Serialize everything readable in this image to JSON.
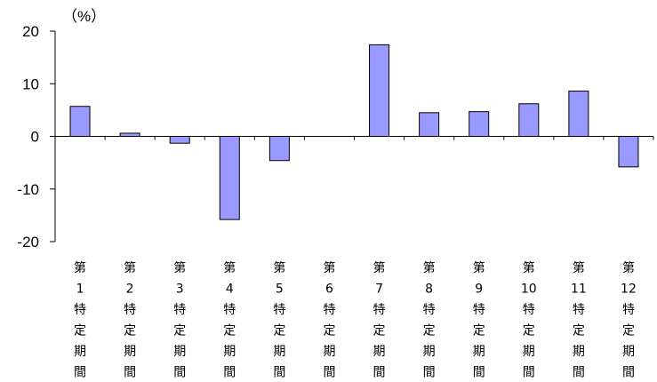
{
  "chart_data": {
    "type": "bar",
    "unit_label": "（%）",
    "categories": [
      [
        "第",
        "1",
        "特",
        "定",
        "期",
        "間"
      ],
      [
        "第",
        "2",
        "特",
        "定",
        "期",
        "間"
      ],
      [
        "第",
        "3",
        "特",
        "定",
        "期",
        "間"
      ],
      [
        "第",
        "4",
        "特",
        "定",
        "期",
        "間"
      ],
      [
        "第",
        "5",
        "特",
        "定",
        "期",
        "間"
      ],
      [
        "第",
        "6",
        "特",
        "定",
        "期",
        "間"
      ],
      [
        "第",
        "7",
        "特",
        "定",
        "期",
        "間"
      ],
      [
        "第",
        "8",
        "特",
        "定",
        "期",
        "間"
      ],
      [
        "第",
        "9",
        "特",
        "定",
        "期",
        "間"
      ],
      [
        "第",
        "10",
        "特",
        "定",
        "期",
        "間"
      ],
      [
        "第",
        "11",
        "特",
        "定",
        "期",
        "間"
      ],
      [
        "第",
        "12",
        "特",
        "定",
        "期",
        "間"
      ]
    ],
    "values": [
      5.7,
      0.6,
      -1.3,
      -15.8,
      -4.6,
      0.0,
      17.4,
      4.5,
      4.7,
      6.2,
      8.6,
      -5.8
    ],
    "ylim": [
      -20,
      20
    ],
    "yticks": [
      20,
      10,
      0,
      -10,
      -20
    ],
    "bar_color": "#9999ff",
    "bar_stroke": "#000000",
    "legend": "none",
    "grid": false
  }
}
